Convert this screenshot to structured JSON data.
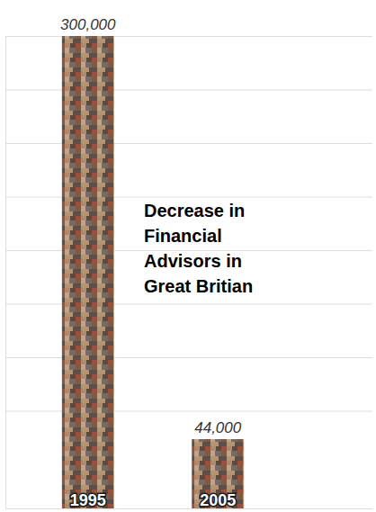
{
  "chart_data": {
    "type": "bar",
    "title": "Decrease in Financial Advisors in Great Britian",
    "categories": [
      "1995",
      "2005"
    ],
    "values": [
      300000,
      44000
    ],
    "value_labels": [
      "300,000",
      "44,000"
    ],
    "data_labels": true,
    "color": "#8b6b55",
    "ylim": [
      0,
      300000
    ],
    "yticks": [
      0,
      62000,
      96000,
      130000,
      164000,
      198000,
      232000,
      266000,
      300000
    ],
    "grid": true,
    "tick_labels": false
  }
}
